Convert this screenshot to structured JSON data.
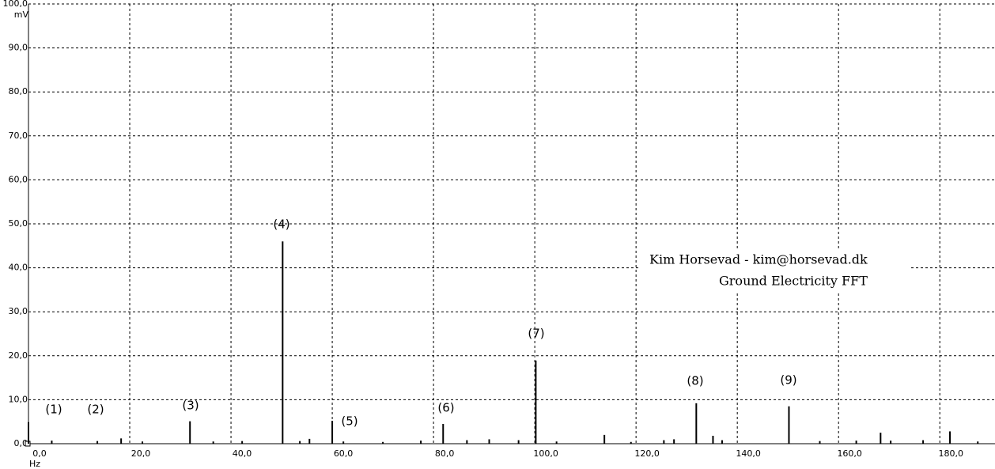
{
  "chart_data": {
    "type": "stem",
    "title": "Kim Horsevad - kim@horsevad.dk",
    "subtitle": "Ground Electricity FFT",
    "x_label": "Hz",
    "y_label": "mV",
    "xlim": [
      0,
      190.9
    ],
    "ylim": [
      0,
      100
    ],
    "xticks": [
      {
        "value": 0,
        "label": "0,0"
      },
      {
        "value": 20,
        "label": "20,0"
      },
      {
        "value": 40,
        "label": "40,0"
      },
      {
        "value": 60,
        "label": "60,0"
      },
      {
        "value": 80,
        "label": "80,0"
      },
      {
        "value": 100,
        "label": "100,0"
      },
      {
        "value": 120,
        "label": "120,0"
      },
      {
        "value": 140,
        "label": "140,0"
      },
      {
        "value": 160,
        "label": "160,0"
      },
      {
        "value": 180,
        "label": "180,0"
      }
    ],
    "yticks": [
      {
        "value": 0,
        "label": "0,0"
      },
      {
        "value": 10,
        "label": "10,0"
      },
      {
        "value": 20,
        "label": "20,0"
      },
      {
        "value": 30,
        "label": "30,0"
      },
      {
        "value": 40,
        "label": "40,0"
      },
      {
        "value": 50,
        "label": "50,0"
      },
      {
        "value": 60,
        "label": "60,0"
      },
      {
        "value": 70,
        "label": "70,0"
      },
      {
        "value": 80,
        "label": "80,0"
      },
      {
        "value": 90,
        "label": "90,0"
      },
      {
        "value": 100,
        "label": "100,0"
      }
    ],
    "grid": true,
    "color": "#000000",
    "x": [
      0,
      4.6,
      13.6,
      18.3,
      22.5,
      31.9,
      36.5,
      42.2,
      50.2,
      53.6,
      55.5,
      60.0,
      62.2,
      70.0,
      77.5,
      81.9,
      86.6,
      91.0,
      96.8,
      100.2,
      104.3,
      113.75,
      119,
      125.5,
      127.5,
      131.9,
      135.2,
      137,
      150.2,
      156.3,
      163.5,
      168.3,
      170.3,
      176.7,
      182.0,
      187.5
    ],
    "values": [
      4.9,
      0.7,
      0.6,
      1.2,
      0.5,
      5.1,
      0.5,
      0.6,
      46,
      0.6,
      1.1,
      5.2,
      0.5,
      0.4,
      0.7,
      4.5,
      0.8,
      1.0,
      0.8,
      18.9,
      0.5,
      2.0,
      0.4,
      0.8,
      1.0,
      9.2,
      1.8,
      0.8,
      8.5,
      0.6,
      0.7,
      2.5,
      0.7,
      0.8,
      2.8,
      0.5
    ],
    "annotations": [
      "(1)",
      "(2)",
      "(3)",
      "(4)",
      "(5)",
      "(6)",
      "(7)",
      "(8)",
      "(9)"
    ]
  }
}
